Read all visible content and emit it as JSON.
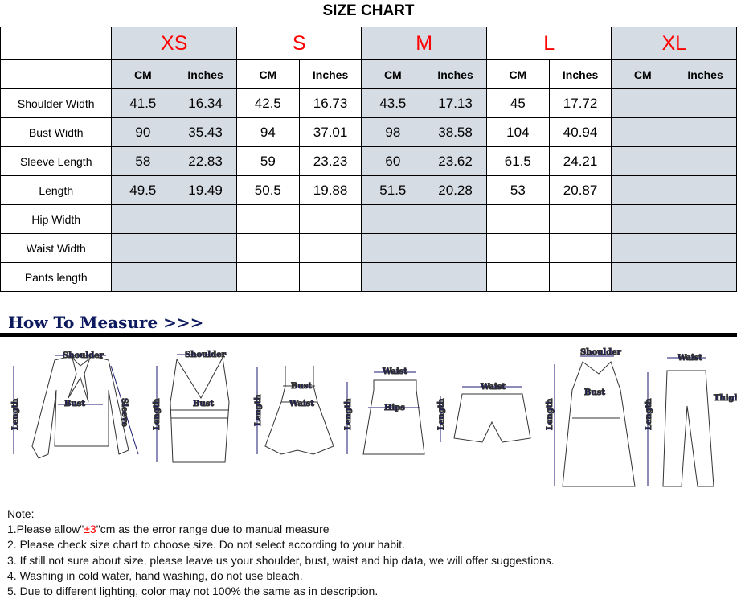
{
  "title": "SIZE CHART",
  "sizes": [
    "XS",
    "S",
    "M",
    "L",
    "XL"
  ],
  "units": [
    "CM",
    "Inches"
  ],
  "rows": [
    {
      "label": "Shoulder Width",
      "values": [
        "41.5",
        "16.34",
        "42.5",
        "16.73",
        "43.5",
        "17.13",
        "45",
        "17.72",
        "",
        ""
      ]
    },
    {
      "label": "Bust Width",
      "values": [
        "90",
        "35.43",
        "94",
        "37.01",
        "98",
        "38.58",
        "104",
        "40.94",
        "",
        ""
      ]
    },
    {
      "label": "Sleeve Length",
      "values": [
        "58",
        "22.83",
        "59",
        "23.23",
        "60",
        "23.62",
        "61.5",
        "24.21",
        "",
        ""
      ]
    },
    {
      "label": "Length",
      "values": [
        "49.5",
        "19.49",
        "50.5",
        "19.88",
        "51.5",
        "20.28",
        "53",
        "20.87",
        "",
        ""
      ]
    },
    {
      "label": "Hip Width",
      "values": [
        "",
        "",
        "",
        "",
        "",
        "",
        "",
        "",
        "",
        ""
      ]
    },
    {
      "label": "Waist Width",
      "values": [
        "",
        "",
        "",
        "",
        "",
        "",
        "",
        "",
        "",
        ""
      ]
    },
    {
      "label": "Pants length",
      "values": [
        "",
        "",
        "",
        "",
        "",
        "",
        "",
        "",
        "",
        ""
      ]
    }
  ],
  "how_to_measure": "How To Measure >>>",
  "diagram_labels": {
    "shoulder": "Shoulder",
    "bust": "Bust",
    "sleeve": "Sleeve",
    "length": "Length",
    "waist": "Waist",
    "hips": "Hips",
    "thigh": "Thigh"
  },
  "notes": {
    "heading": "Note:",
    "line1_a": "1.Please allow\"",
    "line1_b": "±3",
    "line1_c": "\"cm as the error range due to manual measure",
    "line2": "2. Please check size chart to choose size. Do not select according to your habit.",
    "line3": "3. If still not sure about size, please leave us your shoulder, bust, waist and hip data, we will offer suggestions.",
    "line4": "4. Washing in cold water, hand washing, do not use bleach.",
    "line5": "5. Due to different lighting, color may not 100% the same as in description."
  },
  "colors": {
    "size_label": "#ff0000",
    "shade": "#d6dce4",
    "heading": "#0d1a5e"
  }
}
